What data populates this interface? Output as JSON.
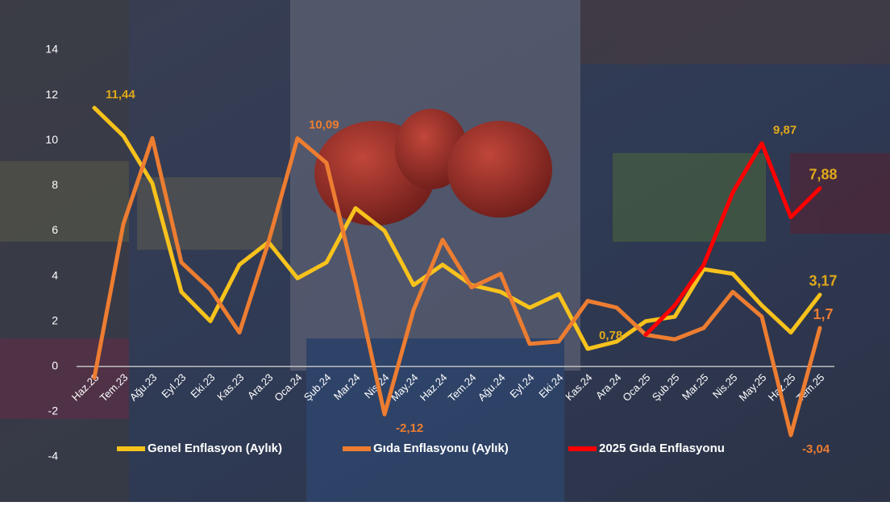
{
  "chart_data": {
    "type": "line",
    "categories": [
      "Haz.23",
      "Tem.23",
      "Ağu.23",
      "Eyl.23",
      "Eki.23",
      "Kas.23",
      "Ara.23",
      "Oca.24",
      "Şub.24",
      "Mar.24",
      "Nis.24",
      "May.24",
      "Haz.24",
      "Tem.24",
      "Ağu.24",
      "Eyl.24",
      "Eki.24",
      "Kas.24",
      "Ara.24",
      "Oca.25",
      "Şub.25",
      "Mar.25",
      "Nis.25",
      "May.25",
      "Haz.25",
      "Tem.25"
    ],
    "series": [
      {
        "name": "Genel Enflasyon (Aylık)",
        "color": "#f7c21c",
        "values": [
          11.44,
          10.2,
          8.1,
          3.3,
          2.0,
          4.5,
          5.5,
          3.9,
          4.6,
          7.0,
          6.0,
          3.6,
          4.5,
          3.6,
          3.3,
          2.6,
          3.2,
          0.78,
          1.1,
          2.0,
          2.2,
          4.3,
          4.1,
          2.7,
          1.5,
          3.17
        ],
        "value_labels": [
          "11,44",
          null,
          null,
          null,
          null,
          null,
          null,
          null,
          null,
          null,
          null,
          null,
          null,
          null,
          null,
          null,
          null,
          "0,78",
          null,
          null,
          null,
          null,
          null,
          null,
          null,
          "3,17"
        ]
      },
      {
        "name": "Gıda Enflasyonu (Aylık)",
        "color": "#ed7d31",
        "values": [
          -0.5,
          6.3,
          10.1,
          4.6,
          3.4,
          1.5,
          5.5,
          10.09,
          9.0,
          3.7,
          -2.12,
          2.5,
          5.6,
          3.5,
          4.1,
          1.0,
          1.1,
          2.9,
          2.6,
          1.4,
          1.2,
          1.7,
          3.3,
          2.2,
          -3.04,
          1.7
        ],
        "value_labels": [
          null,
          null,
          null,
          null,
          null,
          null,
          null,
          "10,09",
          null,
          null,
          "-2,12",
          null,
          null,
          null,
          null,
          null,
          null,
          null,
          null,
          null,
          null,
          null,
          null,
          null,
          "-3,04",
          "1,7"
        ]
      },
      {
        "name": "2025 Gıda Enflasyonu",
        "color": "#ff0000",
        "values": [
          null,
          null,
          null,
          null,
          null,
          null,
          null,
          null,
          null,
          null,
          null,
          null,
          null,
          null,
          null,
          null,
          null,
          null,
          null,
          1.4,
          2.7,
          4.5,
          7.7,
          9.87,
          6.6,
          7.88
        ],
        "value_labels": [
          null,
          null,
          null,
          null,
          null,
          null,
          null,
          null,
          null,
          null,
          null,
          null,
          null,
          null,
          null,
          null,
          null,
          null,
          null,
          null,
          null,
          null,
          null,
          "9,87",
          null,
          "7,88"
        ]
      }
    ],
    "ylim": [
      -4,
      14
    ],
    "yticks": [
      -4,
      -2,
      0,
      2,
      4,
      6,
      8,
      10,
      12,
      14
    ]
  }
}
